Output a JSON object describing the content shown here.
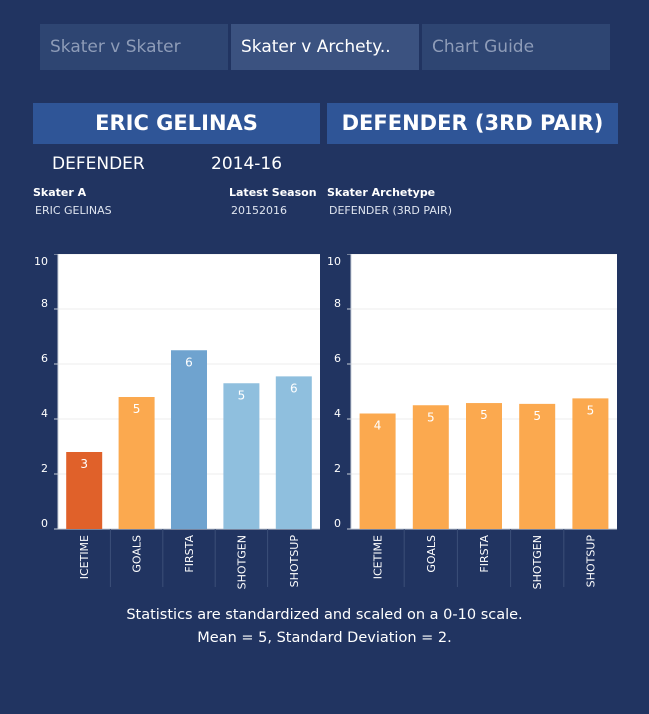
{
  "tabs": [
    {
      "label": "Skater v Skater",
      "active": false
    },
    {
      "label": "Skater v Archety..",
      "active": true
    },
    {
      "label": "Chart Guide",
      "active": false
    }
  ],
  "left_banner": "ERIC GELINAS",
  "right_banner": "DEFENDER (3RD PAIR)",
  "position": "DEFENDER",
  "seasons": "2014-16",
  "info": {
    "skater_a_label": "Skater A",
    "skater_a_value": "ERIC GELINAS",
    "season_label": "Latest Season",
    "season_value": "20152016",
    "archetype_label": "Skater Archetype",
    "archetype_value": "DEFENDER (3RD PAIR)"
  },
  "footer": {
    "line1": "Statistics are standardized and scaled on a 0-10 scale.",
    "line2": "Mean = 5, Standard Deviation = 2."
  },
  "chart_data": [
    {
      "type": "bar",
      "name": "skater",
      "categories": [
        "ICETIME",
        "GOALS",
        "FIRSTA",
        "SHOTGEN",
        "SHOTSUP"
      ],
      "values": [
        2.8,
        4.8,
        6.5,
        5.3,
        5.55
      ],
      "labels": [
        "3",
        "5",
        "6",
        "5",
        "6"
      ],
      "colors": [
        "#e0612a",
        "#fba94f",
        "#6fa3cf",
        "#8fbfde",
        "#8fbfde"
      ],
      "ylim": [
        0,
        10
      ],
      "yticks": [
        0,
        2,
        4,
        6,
        8,
        10
      ]
    },
    {
      "type": "bar",
      "name": "archetype",
      "categories": [
        "ICETIME",
        "GOALS",
        "FIRSTA",
        "SHOTGEN",
        "SHOTSUP"
      ],
      "values": [
        4.2,
        4.5,
        4.58,
        4.55,
        4.75
      ],
      "labels": [
        "4",
        "5",
        "5",
        "5",
        "5"
      ],
      "colors": [
        "#fba94f",
        "#fba94f",
        "#fba94f",
        "#fba94f",
        "#fba94f"
      ],
      "ylim": [
        0,
        10
      ],
      "yticks": [
        0,
        2,
        4,
        6,
        8,
        10
      ]
    }
  ]
}
